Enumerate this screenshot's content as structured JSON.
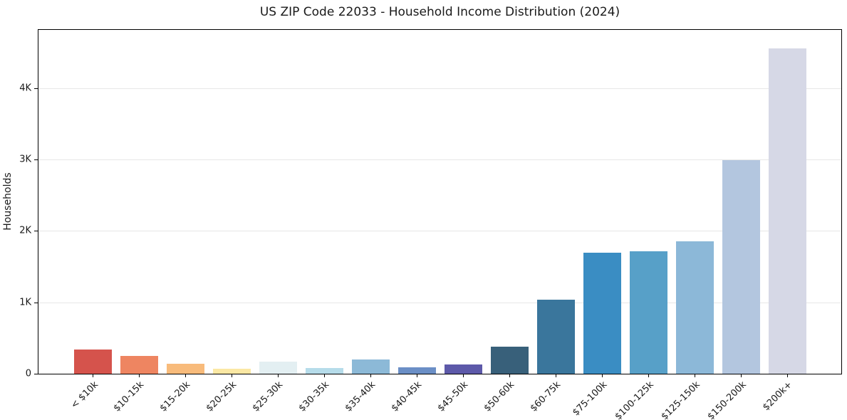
{
  "header": {
    "title": "US ZIP Code 22033 - Household Income Distribution (2024)"
  },
  "chart_data": {
    "type": "bar",
    "title": "US ZIP Code 22033 - Household Income Distribution (2024)",
    "xlabel": "",
    "ylabel": "Households",
    "categories": [
      "< $10k",
      "$10-15k",
      "$15-20k",
      "$20-25k",
      "$25-30k",
      "$30-35k",
      "$35-40k",
      "$40-45k",
      "$45-50k",
      "$50-60k",
      "$60-75k",
      "$75-100k",
      "$100-125k",
      "$125-150k",
      "$150-200k",
      "$200k+"
    ],
    "values": [
      335,
      250,
      135,
      65,
      165,
      75,
      200,
      85,
      130,
      375,
      1035,
      1700,
      1720,
      1850,
      2990,
      4560
    ],
    "bar_colors": [
      "#d5534c",
      "#ee8561",
      "#f8bb7b",
      "#fbe8a4",
      "#e3eff2",
      "#b6dcea",
      "#8cb9d7",
      "#6b8fc6",
      "#5d59a9",
      "#38607a",
      "#3a769c",
      "#3a8dc3",
      "#57a0c8",
      "#8cb8d8",
      "#b3c6df",
      "#d6d8e6"
    ],
    "yticks": [
      {
        "value": 0,
        "label": "0"
      },
      {
        "value": 1000,
        "label": "1K"
      },
      {
        "value": 2000,
        "label": "2K"
      },
      {
        "value": 3000,
        "label": "3K"
      },
      {
        "value": 4000,
        "label": "4K"
      }
    ],
    "ylim": [
      0,
      4816
    ],
    "grid": "horizontal-y-only",
    "grid_color": "#e7e7e7",
    "axis_color": "#000000",
    "background": "#ffffff",
    "legend": "none",
    "x_tick_rotation_deg": 45
  }
}
